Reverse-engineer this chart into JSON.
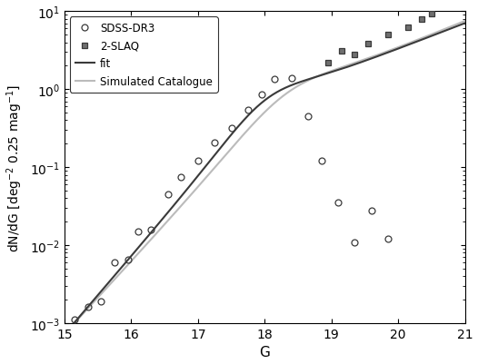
{
  "sdss_x": [
    15.15,
    15.35,
    15.55,
    15.75,
    15.95,
    16.1,
    16.3,
    16.55,
    16.75,
    17.0,
    17.25,
    17.5,
    17.75,
    17.95,
    18.15,
    18.4,
    18.65,
    18.85,
    19.1,
    19.35,
    19.6,
    19.85
  ],
  "sdss_y": [
    0.0011,
    0.0016,
    0.0019,
    0.006,
    0.0065,
    0.015,
    0.016,
    0.045,
    0.075,
    0.12,
    0.21,
    0.32,
    0.55,
    0.85,
    1.35,
    1.4,
    0.45,
    0.12,
    0.035,
    0.011,
    0.028,
    0.012
  ],
  "slaq_x": [
    18.95,
    19.15,
    19.35,
    19.55,
    19.85,
    20.15,
    20.35,
    20.5
  ],
  "slaq_y": [
    2.2,
    3.1,
    2.8,
    3.8,
    5.0,
    6.3,
    8.0,
    9.2
  ],
  "xlabel": "G",
  "ylabel": "dN/dG [deg$^{-2}$ 0.25 mag$^{-1}$]",
  "xlim": [
    15.0,
    21.0
  ],
  "ylim": [
    0.001,
    10
  ],
  "xticks": [
    15,
    16,
    17,
    18,
    19,
    20,
    21
  ],
  "legend_labels": [
    "SDSS-DR3",
    "2-SLAQ",
    "fit",
    "Simulated Catalogue"
  ],
  "fit_color": "#3a3a3a",
  "sim_color": "#bbbbbb",
  "background_color": "#ffffff"
}
